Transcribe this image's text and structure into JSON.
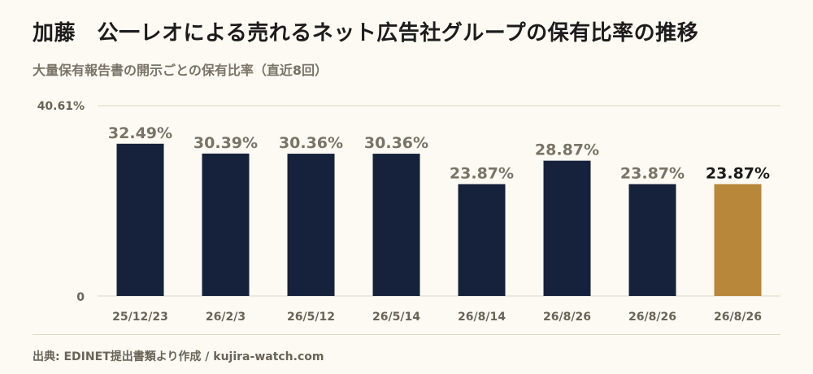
{
  "header": {
    "title": "加藤　公一レオによる売れるネット広告社グループの保有比率の推移",
    "subtitle": "大量保有報告書の開示ごとの保有比率（直近8回）"
  },
  "footer": {
    "source": "出典: EDINET提出書類より作成 / kujira-watch.com"
  },
  "colors": {
    "bar": "#16213b",
    "highlight": "#b8873a",
    "value_label": "#7a7468",
    "value_label_highlight": "#1c1c1c",
    "grid": "#ddd7c6",
    "axis_text": "#6a6458"
  },
  "chart_data": {
    "type": "bar",
    "categories": [
      "25/12/23",
      "26/2/3",
      "26/5/12",
      "26/5/14",
      "26/8/14",
      "26/8/26",
      "26/8/26",
      "26/8/26"
    ],
    "values": [
      32.49,
      30.39,
      30.36,
      30.36,
      23.87,
      28.87,
      23.87,
      23.87
    ],
    "value_labels": [
      "32.49%",
      "30.39%",
      "30.36%",
      "30.36%",
      "23.87%",
      "28.87%",
      "23.87%",
      "23.87%"
    ],
    "highlight_index": 7,
    "ylim": [
      0,
      40.61
    ],
    "y_tick_labels": [
      "0",
      "40.61%"
    ],
    "grid": true,
    "xlabel": "",
    "ylabel": ""
  }
}
